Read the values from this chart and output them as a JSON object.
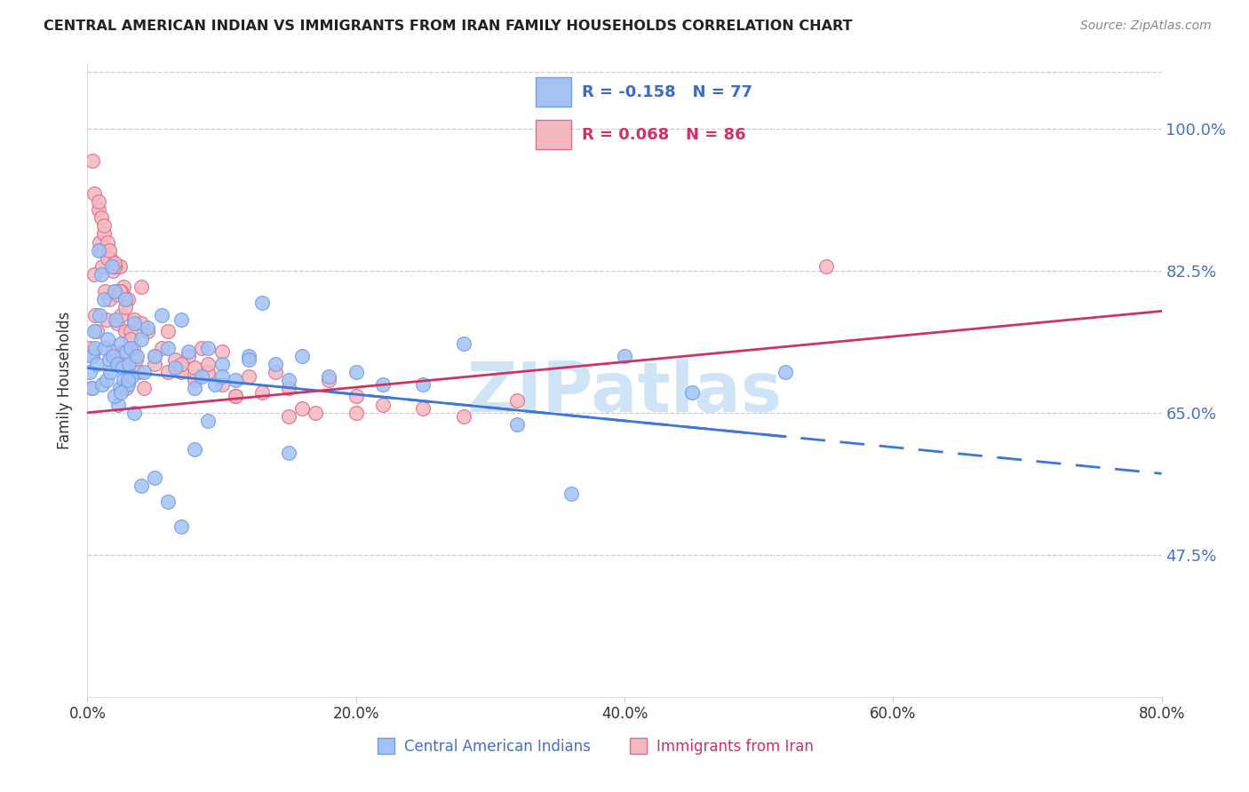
{
  "title": "CENTRAL AMERICAN INDIAN VS IMMIGRANTS FROM IRAN FAMILY HOUSEHOLDS CORRELATION CHART",
  "source": "Source: ZipAtlas.com",
  "ylabel": "Family Households",
  "xlim": [
    0.0,
    80.0
  ],
  "ylim": [
    30.0,
    108.0
  ],
  "yticks": [
    47.5,
    65.0,
    82.5,
    100.0
  ],
  "xticks": [
    0.0,
    20.0,
    40.0,
    60.0,
    80.0
  ],
  "blue_R": -0.158,
  "blue_N": 77,
  "pink_R": 0.068,
  "pink_N": 86,
  "blue_label": "Central American Indians",
  "pink_label": "Immigrants from Iran",
  "blue_color": "#a4c2f4",
  "pink_color": "#f4b8c1",
  "blue_edge_color": "#6d9eeb",
  "pink_edge_color": "#e06c85",
  "blue_line_color": "#3c78d8",
  "pink_line_color": "#cc3366",
  "watermark": "ZIPatlas",
  "watermark_color": "#d0e4f7",
  "blue_line_x0": 0.0,
  "blue_line_y0": 70.5,
  "blue_line_x1": 80.0,
  "blue_line_y1": 57.5,
  "blue_solid_end_x": 52.0,
  "pink_line_x0": 0.0,
  "pink_line_y0": 65.0,
  "pink_line_x1": 80.0,
  "pink_line_y1": 77.5,
  "blue_scatter_x": [
    0.2,
    0.3,
    0.4,
    0.5,
    0.6,
    0.7,
    0.8,
    0.9,
    1.0,
    1.1,
    1.2,
    1.3,
    1.4,
    1.5,
    1.6,
    1.7,
    1.8,
    1.9,
    2.0,
    2.1,
    2.2,
    2.3,
    2.4,
    2.5,
    2.6,
    2.7,
    2.8,
    2.9,
    3.0,
    3.1,
    3.2,
    3.3,
    3.5,
    3.7,
    4.0,
    4.2,
    4.5,
    5.0,
    5.5,
    6.0,
    6.5,
    7.0,
    7.5,
    8.0,
    8.5,
    9.0,
    9.5,
    10.0,
    11.0,
    12.0,
    13.0,
    14.0,
    15.0,
    16.0,
    18.0,
    20.0,
    22.0,
    25.0,
    28.0,
    32.0,
    36.0,
    40.0,
    45.0,
    52.0,
    2.0,
    2.5,
    3.0,
    3.5,
    4.0,
    5.0,
    6.0,
    7.0,
    8.0,
    9.0,
    10.0,
    12.0,
    15.0
  ],
  "blue_scatter_y": [
    70.0,
    72.0,
    68.0,
    75.0,
    73.0,
    71.0,
    85.0,
    77.0,
    82.0,
    68.5,
    79.0,
    73.0,
    69.0,
    74.0,
    71.5,
    70.0,
    83.0,
    72.0,
    80.0,
    76.5,
    71.0,
    66.0,
    68.0,
    73.5,
    70.5,
    69.0,
    79.0,
    72.5,
    68.5,
    71.0,
    73.0,
    69.5,
    76.0,
    72.0,
    74.0,
    70.0,
    75.5,
    72.0,
    77.0,
    73.0,
    70.5,
    76.5,
    72.5,
    68.0,
    69.5,
    73.0,
    68.5,
    71.0,
    69.0,
    72.0,
    78.5,
    71.0,
    69.0,
    72.0,
    69.5,
    70.0,
    68.5,
    68.5,
    73.5,
    63.5,
    55.0,
    72.0,
    67.5,
    70.0,
    67.0,
    67.5,
    69.0,
    65.0,
    56.0,
    57.0,
    54.0,
    51.0,
    60.5,
    64.0,
    69.5,
    71.5,
    60.0
  ],
  "pink_scatter_x": [
    0.2,
    0.3,
    0.4,
    0.5,
    0.6,
    0.7,
    0.8,
    0.9,
    1.0,
    1.1,
    1.2,
    1.3,
    1.4,
    1.5,
    1.6,
    1.7,
    1.8,
    1.9,
    2.0,
    2.1,
    2.2,
    2.3,
    2.4,
    2.5,
    2.6,
    2.7,
    2.8,
    2.9,
    3.0,
    3.2,
    3.4,
    3.6,
    3.8,
    4.0,
    4.2,
    4.5,
    5.0,
    5.5,
    6.0,
    6.5,
    7.0,
    7.5,
    8.0,
    8.5,
    9.0,
    10.0,
    11.0,
    12.0,
    13.0,
    14.0,
    15.0,
    16.0,
    17.0,
    18.0,
    20.0,
    22.0,
    25.0,
    28.0,
    32.0,
    0.5,
    1.0,
    1.5,
    2.0,
    2.5,
    3.0,
    3.5,
    4.0,
    5.0,
    6.0,
    7.0,
    8.0,
    9.0,
    10.0,
    11.0,
    0.4,
    0.8,
    1.2,
    1.6,
    2.0,
    2.4,
    2.8,
    3.2,
    15.0,
    20.0,
    55.0
  ],
  "pink_scatter_y": [
    73.0,
    68.0,
    72.0,
    82.0,
    77.0,
    75.0,
    90.0,
    86.0,
    85.0,
    83.0,
    87.0,
    80.0,
    76.5,
    86.0,
    79.0,
    84.0,
    72.5,
    82.5,
    80.0,
    83.0,
    76.0,
    79.5,
    83.0,
    77.0,
    72.5,
    80.5,
    75.0,
    68.0,
    71.0,
    75.0,
    73.0,
    71.5,
    70.0,
    80.5,
    68.0,
    75.0,
    71.0,
    73.0,
    75.0,
    71.5,
    70.0,
    72.0,
    69.0,
    73.0,
    70.0,
    72.5,
    67.0,
    69.5,
    67.5,
    70.0,
    68.0,
    65.5,
    65.0,
    69.0,
    67.0,
    66.0,
    65.5,
    64.5,
    66.5,
    92.0,
    89.0,
    84.0,
    83.0,
    80.0,
    79.0,
    76.5,
    76.0,
    72.0,
    70.0,
    71.0,
    70.5,
    71.0,
    68.5,
    67.0,
    96.0,
    91.0,
    88.0,
    85.0,
    83.5,
    80.0,
    78.0,
    74.0,
    64.5,
    65.0,
    83.0
  ]
}
